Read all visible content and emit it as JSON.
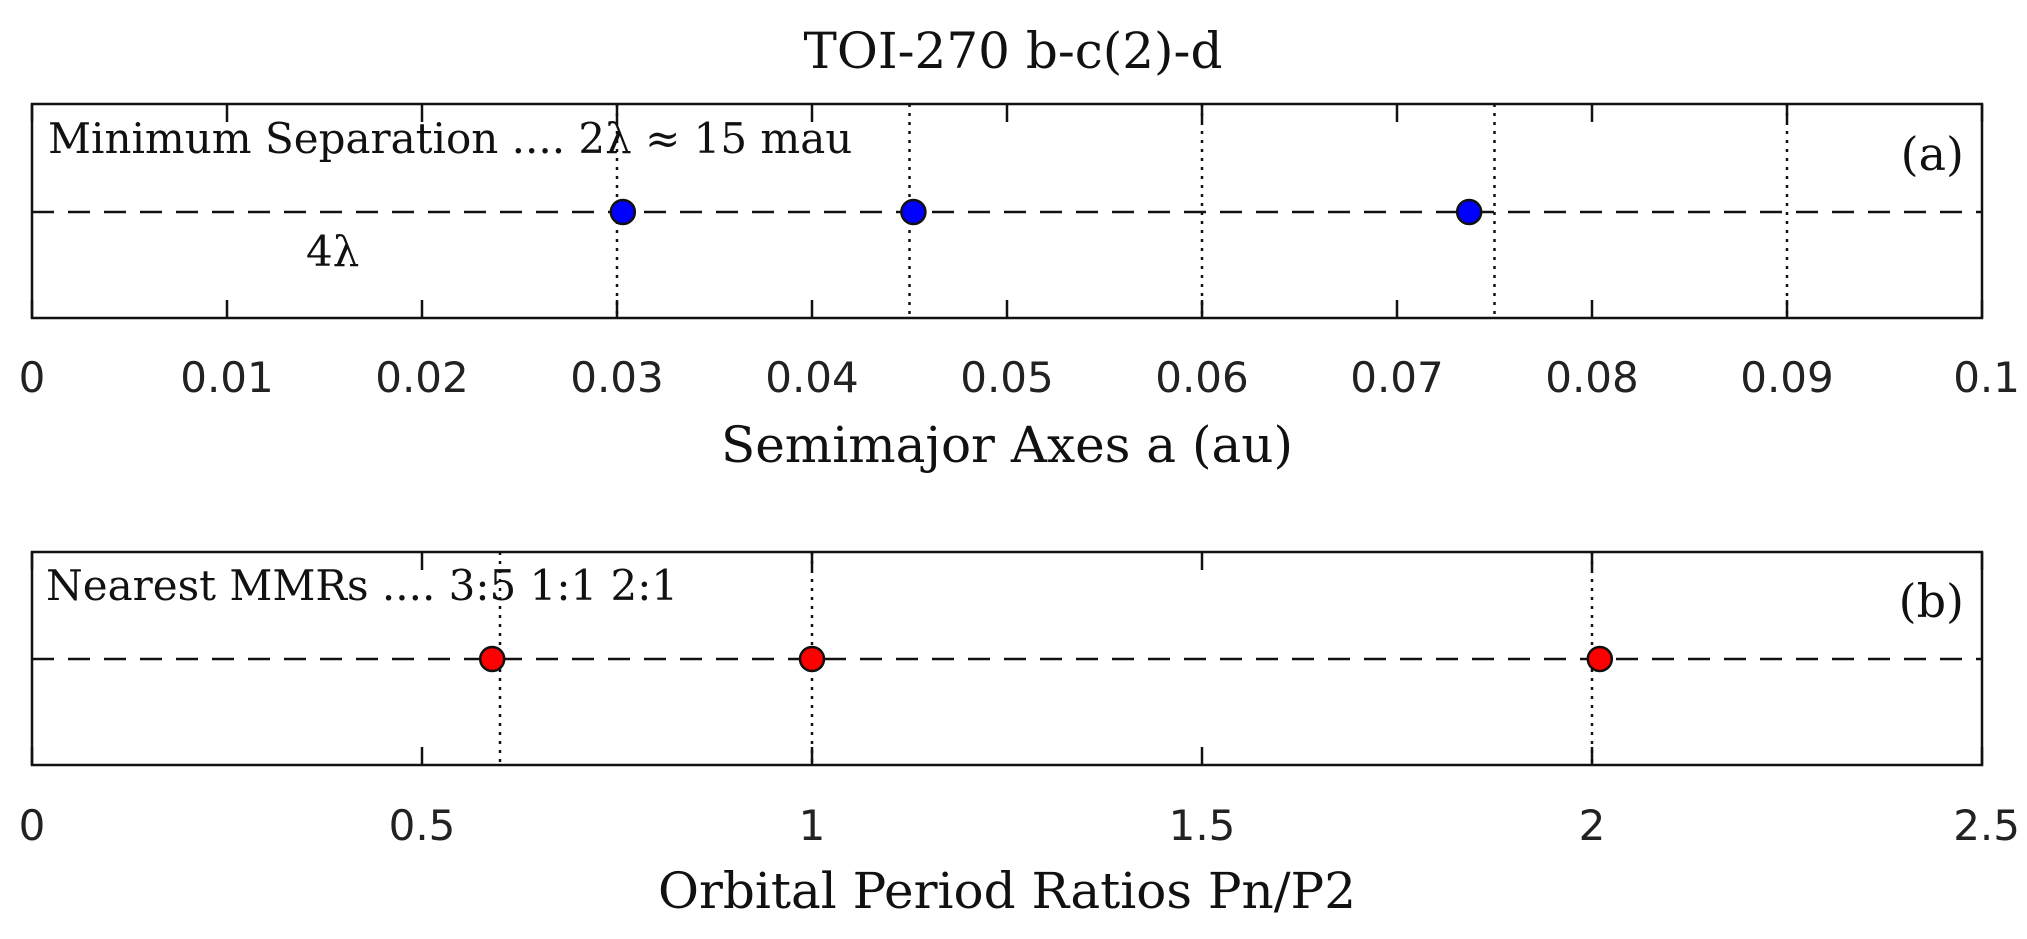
{
  "chart_data": [
    {
      "type": "scatter",
      "panel_label": "(a)",
      "title": "TOI-270  b-c(2)-d",
      "annotation": "Minimum Separation ....  2λ ≈ 15 mau",
      "annotation2": "4λ",
      "xlabel": "Semimajor Axes  a (au)",
      "ylabel": "",
      "xlim": [
        0,
        0.1
      ],
      "xticks": [
        "0",
        "0.01",
        "0.02",
        "0.03",
        "0.04",
        "0.05",
        "0.06",
        "0.07",
        "0.08",
        "0.09",
        "0.1"
      ],
      "tick_values": [
        0,
        0.01,
        0.02,
        0.03,
        0.04,
        0.05,
        0.06,
        0.07,
        0.08,
        0.09,
        0.1
      ],
      "reference_lines": [
        0.03,
        0.045,
        0.06,
        0.075,
        0.09
      ],
      "points": [
        0.0303,
        0.0452,
        0.0737
      ],
      "marker_color": "#0000ff",
      "baseline_style": "dashed",
      "grid": false
    },
    {
      "type": "scatter",
      "panel_label": "(b)",
      "annotation": "Nearest MMRs  ....  3:5   1:1   2:1",
      "xlabel": "Orbital Period Ratios  Pn/P2",
      "ylabel": "",
      "xlim": [
        0,
        2.5
      ],
      "xticks": [
        "0",
        "0.5",
        "1",
        "1.5",
        "2",
        "2.5"
      ],
      "tick_values": [
        0,
        0.5,
        1,
        1.5,
        2,
        2.5
      ],
      "reference_lines": [
        0.6,
        1.0,
        2.0
      ],
      "points": [
        0.59,
        1.0,
        2.01
      ],
      "marker_color": "#ff0000",
      "baseline_style": "dashed",
      "grid": false
    }
  ]
}
